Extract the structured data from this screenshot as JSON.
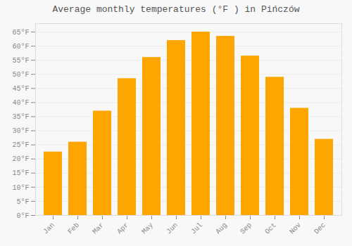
{
  "chart_data": {
    "type": "bar",
    "title": "Average monthly temperatures (°F ) in Pińczów",
    "categories": [
      "Jan",
      "Feb",
      "Mar",
      "Apr",
      "May",
      "Jun",
      "Jul",
      "Aug",
      "Sep",
      "Oct",
      "Nov",
      "Dec"
    ],
    "values": [
      22.5,
      26.0,
      37.0,
      48.5,
      56.0,
      62.0,
      65.0,
      63.5,
      56.5,
      49.0,
      38.0,
      27.0
    ],
    "color": "#FFA500",
    "ylim": [
      0,
      68
    ],
    "yticks": [
      {
        "value": 0,
        "label": "0°F"
      },
      {
        "value": 5,
        "label": "5°F"
      },
      {
        "value": 10,
        "label": "10°F"
      },
      {
        "value": 15,
        "label": "15°F"
      },
      {
        "value": 20,
        "label": "20°F"
      },
      {
        "value": 25,
        "label": "25°F"
      },
      {
        "value": 30,
        "label": "30°F"
      },
      {
        "value": 35,
        "label": "35°F"
      },
      {
        "value": 40,
        "label": "40°F"
      },
      {
        "value": 45,
        "label": "45°F"
      },
      {
        "value": 50,
        "label": "50°F"
      },
      {
        "value": 55,
        "label": "55°F"
      },
      {
        "value": 60,
        "label": "60°F"
      },
      {
        "value": 65,
        "label": "65°F"
      }
    ],
    "grid": true
  }
}
